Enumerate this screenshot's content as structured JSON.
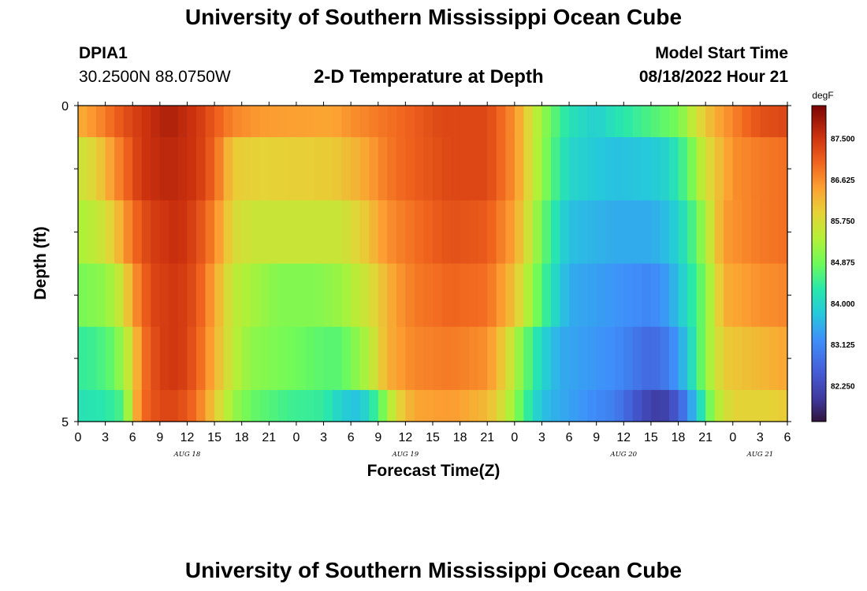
{
  "header": {
    "title": "University of Southern Mississippi Ocean Cube",
    "station": "DPIA1",
    "coords": "30.2500N  88.0750W",
    "model_start_label": "Model Start Time",
    "model_start_value": "08/18/2022 Hour 21",
    "subtitle": "2-D Temperature at Depth"
  },
  "footer": {
    "title": "University of Southern Mississippi Ocean Cube"
  },
  "chart_data": {
    "type": "heatmap",
    "title": "2-D Temperature at Depth",
    "xlabel": "Forecast Time(Z)",
    "ylabel": "Depth (ft)",
    "x_hours_range": [
      0,
      78
    ],
    "x_tick_labels": [
      "0",
      "3",
      "6",
      "9",
      "12",
      "15",
      "18",
      "21",
      "0",
      "3",
      "6",
      "9",
      "12",
      "15",
      "18",
      "21",
      "0",
      "3",
      "6",
      "9",
      "12",
      "15",
      "18",
      "21",
      "0",
      "3",
      "6"
    ],
    "day_labels": [
      {
        "label": "AUG 18",
        "hour": 12
      },
      {
        "label": "AUG 19",
        "hour": 36
      },
      {
        "label": "AUG 20",
        "hour": 60
      },
      {
        "label": "AUG 21",
        "hour": 75
      }
    ],
    "y_tick_labels": [
      "0",
      "5"
    ],
    "ylim": [
      0,
      5
    ],
    "colorbar": {
      "unit": "degF",
      "min": 81.5,
      "max": 88.2,
      "tick_labels": [
        "87.500",
        "86.625",
        "85.750",
        "84.875",
        "84.000",
        "83.125",
        "82.250"
      ],
      "tick_values": [
        87.5,
        86.625,
        85.75,
        84.875,
        84.0,
        83.125,
        82.25
      ]
    },
    "rows": [
      {
        "depth_top": 0.0,
        "depth_bottom": 0.5,
        "keyframes": [
          [
            0,
            86.3
          ],
          [
            2,
            86.6
          ],
          [
            5,
            87.2
          ],
          [
            8,
            87.6
          ],
          [
            10,
            87.8
          ],
          [
            13,
            87.5
          ],
          [
            15,
            87.1
          ],
          [
            17,
            86.7
          ],
          [
            20,
            86.5
          ],
          [
            28,
            86.4
          ],
          [
            30,
            86.6
          ],
          [
            33,
            86.8
          ],
          [
            36,
            87.0
          ],
          [
            40,
            87.3
          ],
          [
            45,
            87.3
          ],
          [
            48,
            86.6
          ],
          [
            50,
            85.6
          ],
          [
            52,
            84.8
          ],
          [
            54,
            84.2
          ],
          [
            57,
            83.9
          ],
          [
            59,
            84.2
          ],
          [
            63,
            84.6
          ],
          [
            66,
            84.9
          ],
          [
            68,
            85.7
          ],
          [
            70,
            86.3
          ],
          [
            73,
            86.9
          ],
          [
            75,
            87.2
          ],
          [
            78,
            87.3
          ]
        ]
      },
      {
        "depth_top": 0.5,
        "depth_bottom": 1.5,
        "keyframes": [
          [
            0,
            85.6
          ],
          [
            2,
            85.9
          ],
          [
            5,
            86.9
          ],
          [
            7,
            87.5
          ],
          [
            10,
            87.7
          ],
          [
            13,
            87.5
          ],
          [
            15,
            87.0
          ],
          [
            17,
            86.0
          ],
          [
            20,
            85.9
          ],
          [
            28,
            86.0
          ],
          [
            31,
            86.3
          ],
          [
            34,
            86.8
          ],
          [
            36,
            87.0
          ],
          [
            41,
            87.3
          ],
          [
            45,
            87.3
          ],
          [
            48,
            86.6
          ],
          [
            50,
            85.6
          ],
          [
            52,
            84.7
          ],
          [
            54,
            84.0
          ],
          [
            59,
            83.7
          ],
          [
            63,
            83.8
          ],
          [
            65,
            84.0
          ],
          [
            67,
            84.7
          ],
          [
            69,
            85.7
          ],
          [
            72,
            86.6
          ],
          [
            75,
            86.8
          ],
          [
            78,
            86.9
          ]
        ]
      },
      {
        "depth_top": 1.5,
        "depth_bottom": 2.5,
        "keyframes": [
          [
            0,
            85.3
          ],
          [
            2,
            85.5
          ],
          [
            4,
            86.0
          ],
          [
            6,
            86.9
          ],
          [
            8,
            87.4
          ],
          [
            11,
            87.6
          ],
          [
            13,
            87.3
          ],
          [
            15,
            86.7
          ],
          [
            17,
            85.8
          ],
          [
            19,
            85.6
          ],
          [
            29,
            85.6
          ],
          [
            32,
            86.1
          ],
          [
            34,
            86.6
          ],
          [
            37,
            86.9
          ],
          [
            41,
            87.2
          ],
          [
            45,
            87.1
          ],
          [
            48,
            86.4
          ],
          [
            50,
            85.4
          ],
          [
            52,
            84.4
          ],
          [
            54,
            83.7
          ],
          [
            59,
            83.5
          ],
          [
            63,
            83.5
          ],
          [
            65,
            83.7
          ],
          [
            67,
            84.3
          ],
          [
            69,
            85.3
          ],
          [
            71,
            86.5
          ],
          [
            75,
            86.8
          ],
          [
            78,
            86.9
          ]
        ]
      },
      {
        "depth_top": 2.5,
        "depth_bottom": 3.5,
        "keyframes": [
          [
            0,
            84.9
          ],
          [
            3,
            85.1
          ],
          [
            5,
            85.7
          ],
          [
            6,
            86.5
          ],
          [
            8,
            87.3
          ],
          [
            11,
            87.5
          ],
          [
            13,
            87.2
          ],
          [
            15,
            86.4
          ],
          [
            17,
            85.5
          ],
          [
            19,
            85.3
          ],
          [
            22,
            85.0
          ],
          [
            26,
            85.0
          ],
          [
            29,
            85.2
          ],
          [
            32,
            85.7
          ],
          [
            35,
            86.5
          ],
          [
            37,
            86.8
          ],
          [
            41,
            87.0
          ],
          [
            45,
            86.9
          ],
          [
            48,
            86.1
          ],
          [
            50,
            85.1
          ],
          [
            52,
            84.2
          ],
          [
            54,
            83.5
          ],
          [
            59,
            83.3
          ],
          [
            63,
            83.1
          ],
          [
            65,
            83.4
          ],
          [
            67,
            84.1
          ],
          [
            69,
            85.0
          ],
          [
            71,
            86.3
          ],
          [
            75,
            86.6
          ],
          [
            78,
            86.7
          ]
        ]
      },
      {
        "depth_top": 3.5,
        "depth_bottom": 4.5,
        "keyframes": [
          [
            0,
            84.4
          ],
          [
            2,
            84.5
          ],
          [
            4,
            84.8
          ],
          [
            6,
            85.8
          ],
          [
            7,
            86.8
          ],
          [
            9,
            87.4
          ],
          [
            11,
            87.5
          ],
          [
            13,
            87.1
          ],
          [
            15,
            86.3
          ],
          [
            17,
            85.5
          ],
          [
            19,
            85.1
          ],
          [
            23,
            84.9
          ],
          [
            27,
            84.7
          ],
          [
            29,
            84.7
          ],
          [
            32,
            85.4
          ],
          [
            34,
            86.3
          ],
          [
            37,
            86.7
          ],
          [
            41,
            86.8
          ],
          [
            45,
            86.6
          ],
          [
            47,
            85.9
          ],
          [
            49,
            84.9
          ],
          [
            51,
            84.0
          ],
          [
            53,
            83.5
          ],
          [
            59,
            83.2
          ],
          [
            63,
            82.7
          ],
          [
            65,
            83.0
          ],
          [
            67,
            83.8
          ],
          [
            69,
            85.1
          ],
          [
            71,
            86.0
          ],
          [
            75,
            86.2
          ],
          [
            78,
            86.4
          ]
        ]
      },
      {
        "depth_top": 4.5,
        "depth_bottom": 5.0,
        "keyframes": [
          [
            0,
            84.2
          ],
          [
            3,
            84.3
          ],
          [
            5,
            84.6
          ],
          [
            6,
            85.9
          ],
          [
            7,
            86.9
          ],
          [
            9,
            87.3
          ],
          [
            11,
            87.3
          ],
          [
            13,
            86.9
          ],
          [
            15,
            86.0
          ],
          [
            17,
            85.2
          ],
          [
            19,
            84.8
          ],
          [
            23,
            84.5
          ],
          [
            27,
            84.4
          ],
          [
            29,
            83.9
          ],
          [
            31,
            83.7
          ],
          [
            33,
            84.6
          ],
          [
            35,
            85.8
          ],
          [
            37,
            86.4
          ],
          [
            41,
            86.5
          ],
          [
            45,
            86.2
          ],
          [
            47,
            85.6
          ],
          [
            49,
            84.6
          ],
          [
            51,
            83.7
          ],
          [
            53,
            83.5
          ],
          [
            59,
            83.0
          ],
          [
            62,
            82.3
          ],
          [
            64,
            82.0
          ],
          [
            66,
            82.5
          ],
          [
            68,
            83.8
          ],
          [
            70,
            85.3
          ],
          [
            72,
            85.9
          ],
          [
            76,
            85.9
          ],
          [
            78,
            86.0
          ]
        ]
      }
    ]
  }
}
